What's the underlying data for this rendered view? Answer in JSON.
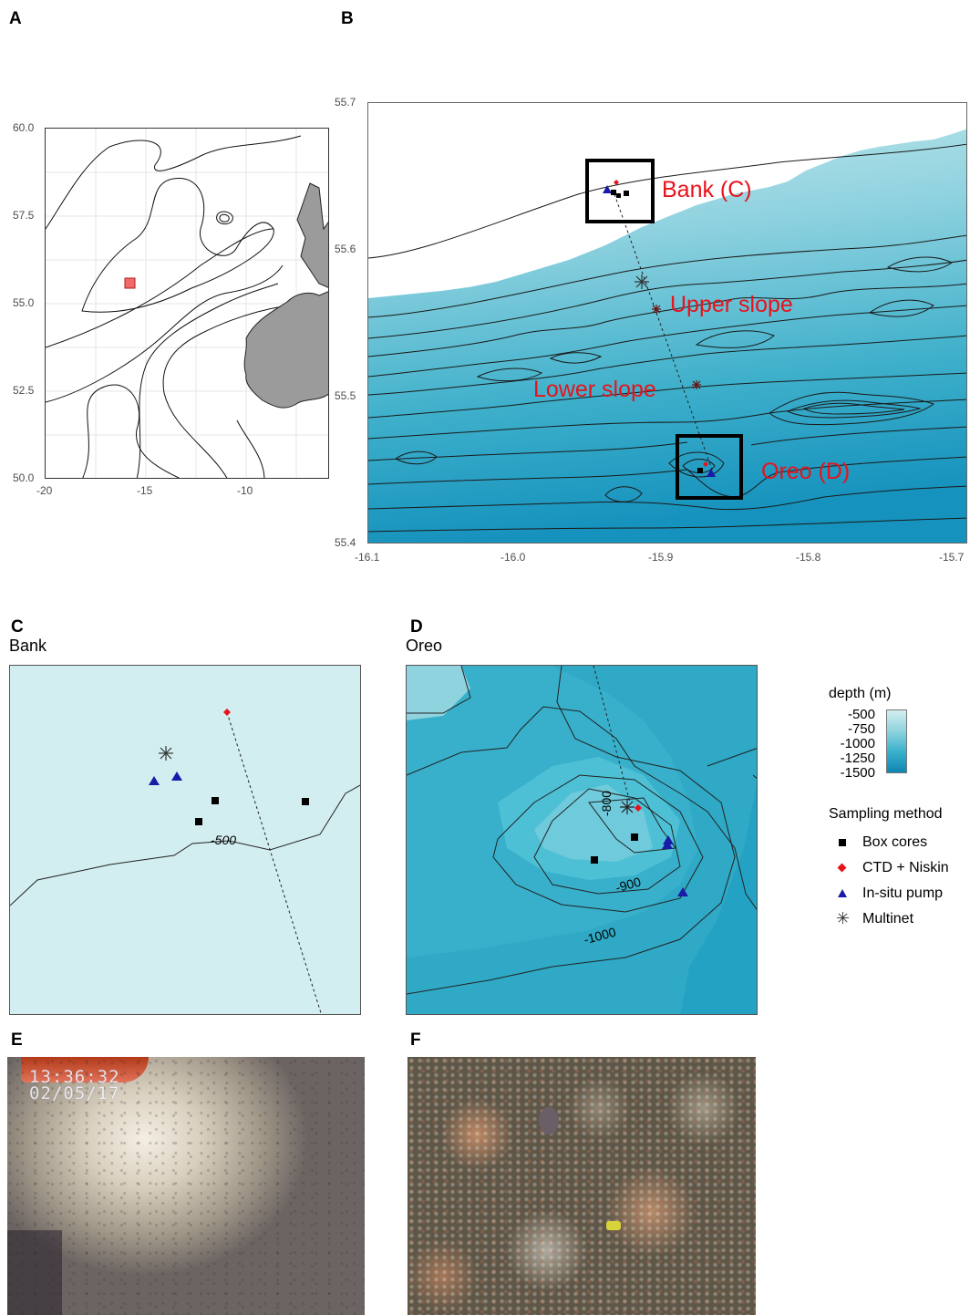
{
  "panels": {
    "a": {
      "letter": "A",
      "ticks_y": [
        "60.0",
        "57.5",
        "55.0",
        "52.5",
        "50.0"
      ],
      "ticks_x": [
        "-20",
        "-15",
        "-10"
      ]
    },
    "b": {
      "letter": "B",
      "ticks_y": [
        "55.7",
        "55.6",
        "55.5",
        "55.4"
      ],
      "ticks_x": [
        "-16.1",
        "-16.0",
        "-15.9",
        "-15.8",
        "-15.7"
      ],
      "labels": {
        "bank": "Bank (C)",
        "upper": "Upper slope",
        "lower": "Lower slope",
        "oreo": "Oreo (D)"
      }
    },
    "c": {
      "letter": "C",
      "subtitle": "Bank",
      "contour_label": "-500"
    },
    "d": {
      "letter": "D",
      "subtitle": "Oreo",
      "contour_labels": {
        "c800": "-800",
        "c900": "-900",
        "c1000": "-1000"
      }
    },
    "e": {
      "letter": "E",
      "stamp_time": "13:36:32",
      "stamp_date": "02/05/17"
    },
    "f": {
      "letter": "F"
    }
  },
  "legend": {
    "depth_title": "depth (m)",
    "depth_ticks": [
      "-500",
      "-750",
      "-1000",
      "-1250",
      "-1500"
    ],
    "method_title": "Sampling method",
    "methods": [
      {
        "label": "Box cores",
        "icon": "square",
        "color": "#000000"
      },
      {
        "label": "CTD + Niskin",
        "icon": "diamond",
        "color": "#e8121b"
      },
      {
        "label": "In-situ pump",
        "icon": "triangle",
        "color": "#1a1aa8"
      },
      {
        "label": "Multinet",
        "icon": "asterisk",
        "color": "#333333"
      }
    ]
  },
  "colors": {
    "land": "#9b9b9b",
    "sea_light": "#d3eef0",
    "sea_mid": "#4fb8cc",
    "sea_deep": "#0e86b3",
    "label_red": "#e8121b"
  }
}
